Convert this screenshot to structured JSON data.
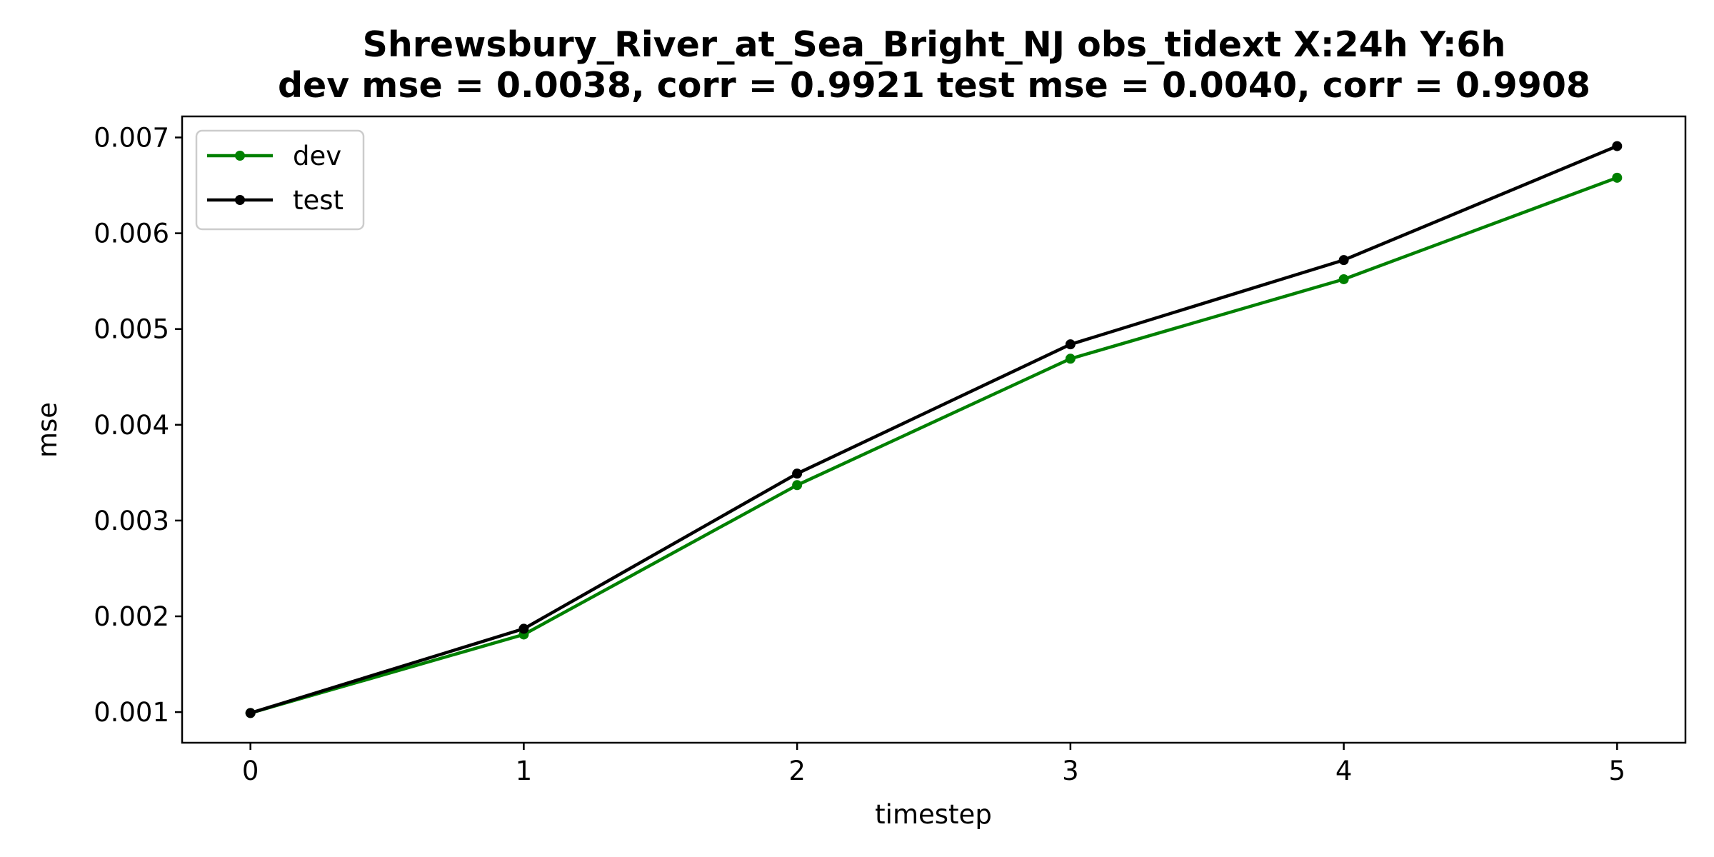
{
  "chart_data": {
    "type": "line",
    "title_line1": "Shrewsbury_River_at_Sea_Bright_NJ   obs_tidext   X:24h   Y:6h",
    "title_line2": "dev mse = 0.0038, corr = 0.9921   test mse = 0.0040, corr = 0.9908",
    "xlabel": "timestep",
    "ylabel": "mse",
    "x": [
      0,
      1,
      2,
      3,
      4,
      5
    ],
    "xlim": [
      -0.25,
      5.25
    ],
    "ylim": [
      0.00068,
      0.00722
    ],
    "xticks": [
      0,
      1,
      2,
      3,
      4,
      5
    ],
    "yticks": [
      0.001,
      0.002,
      0.003,
      0.004,
      0.005,
      0.006,
      0.007
    ],
    "ytick_labels": [
      "0.001",
      "0.002",
      "0.003",
      "0.004",
      "0.005",
      "0.006",
      "0.007"
    ],
    "grid": false,
    "legend_position": "top-left",
    "series": [
      {
        "name": "dev",
        "color": "#008000",
        "values": [
          0.00099,
          0.00181,
          0.00337,
          0.00469,
          0.00552,
          0.00658
        ]
      },
      {
        "name": "test",
        "color": "#000000",
        "values": [
          0.00099,
          0.00187,
          0.00349,
          0.00484,
          0.00572,
          0.00691
        ]
      }
    ]
  }
}
